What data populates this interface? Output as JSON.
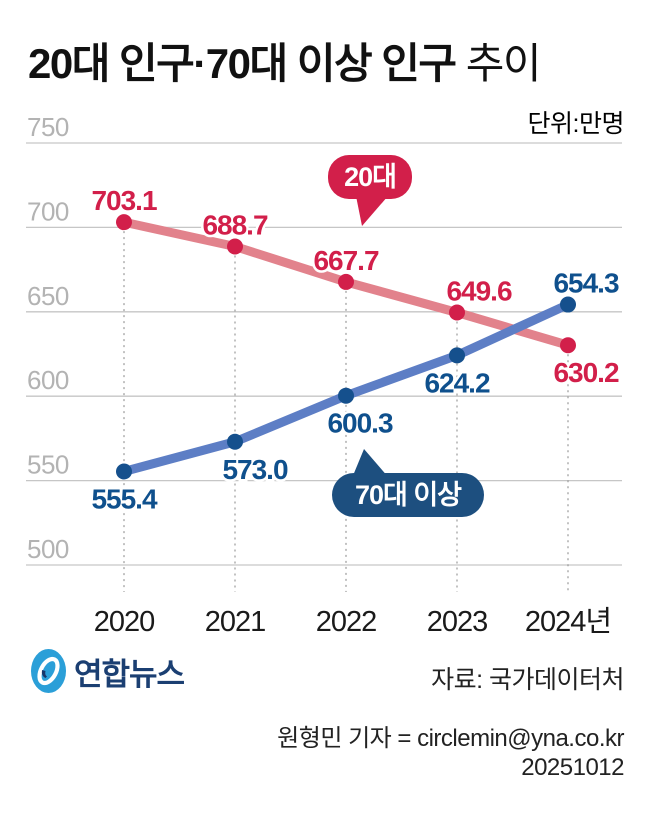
{
  "title": {
    "bold": "20대 인구·70대 이상 인구",
    "light": " 추이"
  },
  "unit_label": "단위:만명",
  "chart_data": {
    "type": "line",
    "title": "20대 인구·70대 이상 인구 추이",
    "unit": "만명",
    "x_categories": [
      "2020",
      "2021",
      "2022",
      "2023",
      "2024년"
    ],
    "ylim": [
      500,
      750
    ],
    "yticks": [
      750,
      700,
      650,
      600,
      550,
      500
    ],
    "grid": true,
    "legend_position": "in-chart-bubbles",
    "series": [
      {
        "name": "20대",
        "values": [
          703.1,
          688.7,
          667.7,
          649.6,
          630.2
        ],
        "point_labels": [
          "703.1",
          "688.7",
          "667.7",
          "649.6",
          "630.2"
        ],
        "label_pos": [
          "above",
          "above",
          "above",
          "above",
          "below"
        ],
        "label_dx": [
          0,
          0,
          0,
          22,
          18
        ],
        "line_color": "#e2828c",
        "point_color": "#d21f4a",
        "label_color": "#d21f4a",
        "badge": {
          "text": "20대",
          "bg": "#d21f4a",
          "fg": "#ffffff"
        }
      },
      {
        "name": "70대 이상",
        "values": [
          555.4,
          573.0,
          600.3,
          624.2,
          654.3
        ],
        "point_labels": [
          "555.4",
          "573.0",
          "600.3",
          "624.2",
          "654.3"
        ],
        "label_pos": [
          "below",
          "below",
          "below",
          "below",
          "above"
        ],
        "label_dx": [
          0,
          20,
          14,
          0,
          18
        ],
        "line_color": "#5d7ec5",
        "point_color": "#15508d",
        "label_color": "#0f508d",
        "badge": {
          "text": "70대 이상",
          "bg": "#1d4f7f",
          "fg": "#ffffff"
        }
      }
    ],
    "colors": {
      "grid": "#c6c6c6",
      "tick_text": "#b3b3b3",
      "guide_dotted": "#9a9a9a",
      "axis_text": "#1a1a1a"
    }
  },
  "footer": {
    "logo_text": "연합뉴스",
    "source": "자료: 국가데이터처",
    "credit": "원형민 기자 = circlemin@yna.co.kr",
    "date": "20251012"
  }
}
